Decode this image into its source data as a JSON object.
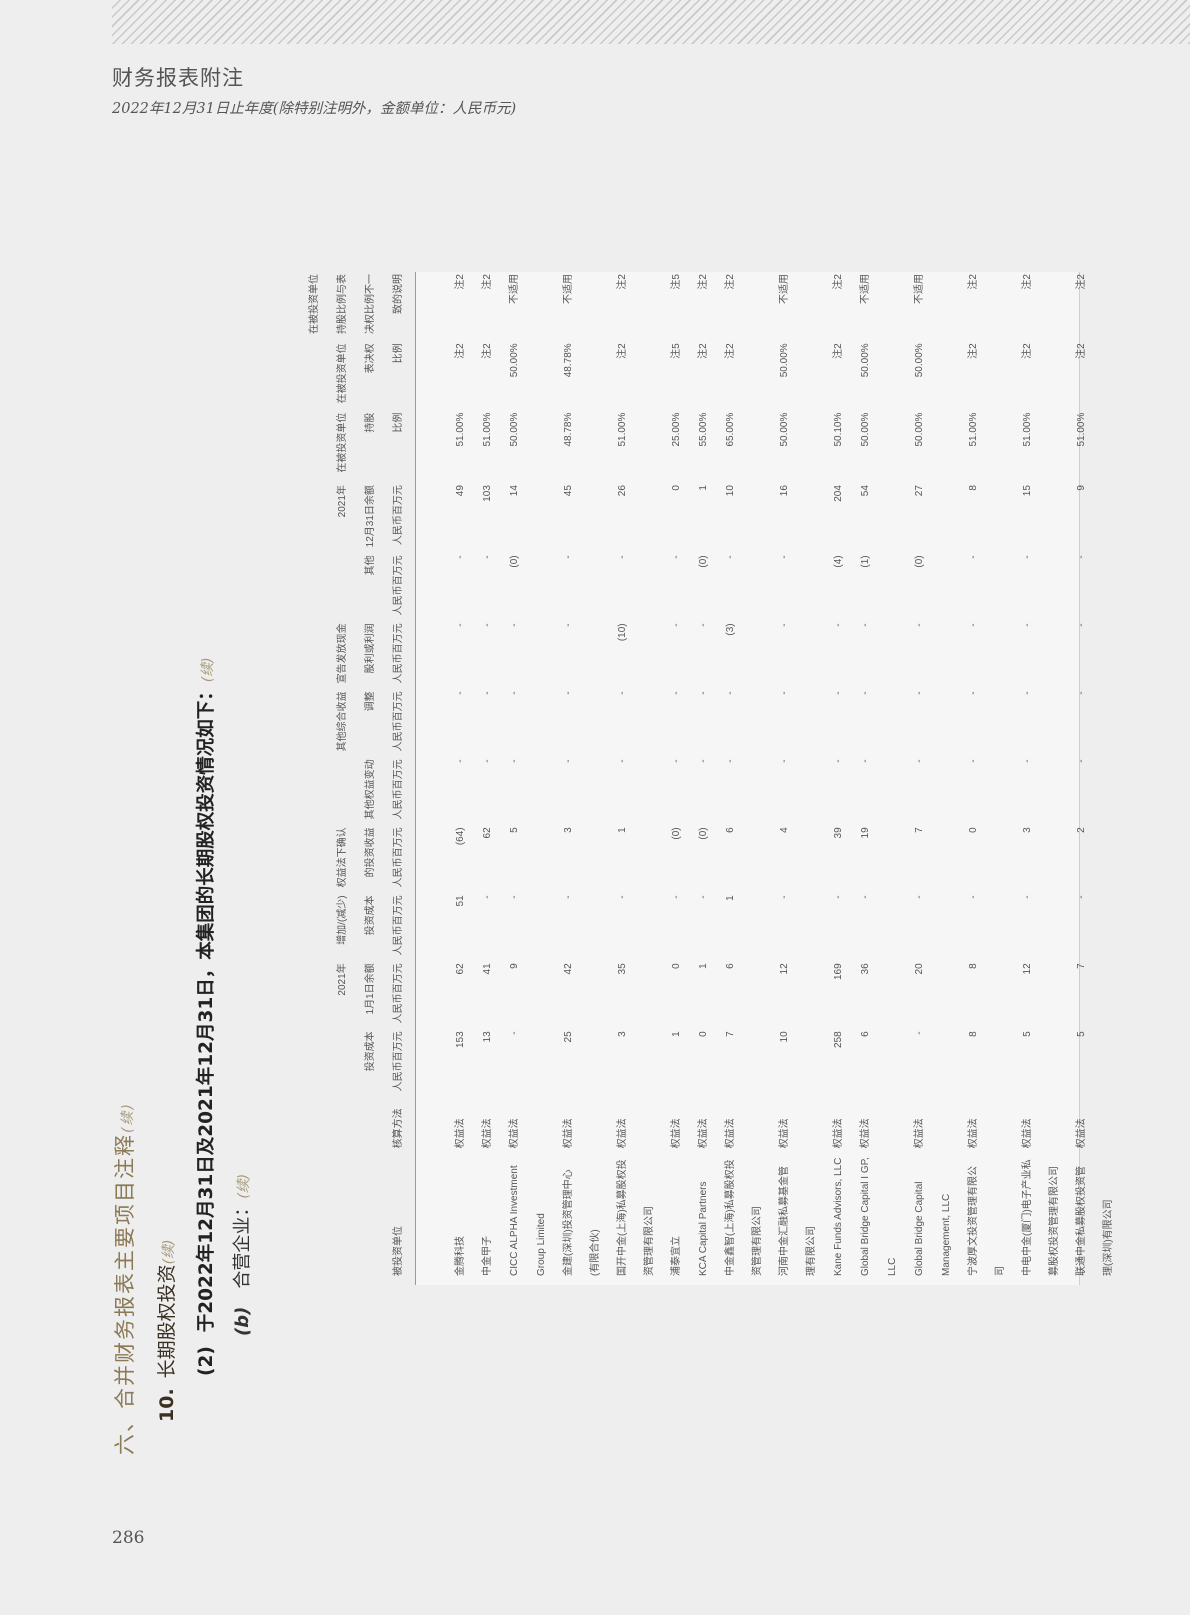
{
  "header": {
    "title": "财务报表附注",
    "subtitle": "2022年12月31日止年度(除特别注明外，金额单位：人民币元)"
  },
  "page_number": "286",
  "headings": {
    "section": "六、合并财务报表主要项目注释",
    "section_cont": "(续)",
    "item_num": "10.",
    "item": "长期股权投资",
    "item_cont": "(续)",
    "sub_num": "(2)",
    "sub": "于2022年12月31日及2021年12月31日，本集团的长期股权投资情况如下：",
    "sub_cont": "(续)",
    "part_num": "(b)",
    "part": "合营企业：",
    "part_cont": "(续)"
  },
  "table": {
    "columns": [
      [
        "被投资单位"
      ],
      [
        "核算方法"
      ],
      [
        "投资成本",
        "人民币百万元"
      ],
      [
        "2021年",
        "1月1日余额",
        "人民币百万元"
      ],
      [
        "增加/(减少)",
        "投资成本",
        "人民币百万元"
      ],
      [
        "权益法下确认",
        "的投资收益",
        "人民币百万元"
      ],
      [
        "其他权益变动",
        "人民币百万元"
      ],
      [
        "其他综合收益",
        "调整",
        "人民币百万元"
      ],
      [
        "宣告发放现金",
        "股利或利润",
        "人民币百万元"
      ],
      [
        "其他",
        "人民币百万元"
      ],
      [
        "2021年",
        "12月31日余额",
        "人民币百万元"
      ],
      [
        "在被投资单位",
        "持股",
        "比例"
      ],
      [
        "在被投资单位",
        "表决权",
        "比例"
      ],
      [
        "在被投资单位",
        "持股比例与表",
        "决权比例不一",
        "致的说明"
      ]
    ],
    "rows": [
      [
        "金腾科技",
        "权益法",
        "153",
        "62",
        "51",
        "(64)",
        "-",
        "-",
        "-",
        "-",
        "49",
        "51.00%",
        "注2",
        "注2"
      ],
      [
        "中金甲子",
        "权益法",
        "13",
        "41",
        "-",
        "62",
        "-",
        "-",
        "-",
        "-",
        "103",
        "51.00%",
        "注2",
        "注2"
      ],
      [
        "CICC ALPHA Investment Group Limited",
        "权益法",
        "-",
        "9",
        "-",
        "5",
        "-",
        "-",
        "-",
        "(0)",
        "14",
        "50.00%",
        "50.00%",
        "不适用"
      ],
      [
        "金建(深圳)投资管理中心(有限合伙)",
        "权益法",
        "25",
        "42",
        "-",
        "3",
        "-",
        "-",
        "-",
        "-",
        "45",
        "48.78%",
        "48.78%",
        "不适用"
      ],
      [
        "国开中金(上海)私募股权投资管理有限公司",
        "权益法",
        "3",
        "35",
        "-",
        "1",
        "-",
        "-",
        "(10)",
        "-",
        "26",
        "51.00%",
        "注2",
        "注2"
      ],
      [
        "浦泰宜立",
        "权益法",
        "1",
        "0",
        "-",
        "(0)",
        "-",
        "-",
        "-",
        "-",
        "0",
        "25.00%",
        "注5",
        "注5"
      ],
      [
        "KCA Capital Partners",
        "权益法",
        "0",
        "1",
        "-",
        "(0)",
        "-",
        "-",
        "-",
        "(0)",
        "1",
        "55.00%",
        "注2",
        "注2"
      ],
      [
        "中金鑫智(上海)私募股权投资管理有限公司",
        "权益法",
        "7",
        "6",
        "1",
        "6",
        "-",
        "-",
        "(3)",
        "-",
        "10",
        "65.00%",
        "注2",
        "注2"
      ],
      [
        "河南中金汇融私募基金管理有限公司",
        "权益法",
        "10",
        "12",
        "-",
        "4",
        "-",
        "-",
        "-",
        "-",
        "16",
        "50.00%",
        "50.00%",
        "不适用"
      ],
      [
        "Kane Funds Advisors, LLC",
        "权益法",
        "258",
        "169",
        "-",
        "39",
        "-",
        "-",
        "-",
        "(4)",
        "204",
        "50.10%",
        "注2",
        "注2"
      ],
      [
        "Global Bridge Capital I GP, LLC",
        "权益法",
        "6",
        "36",
        "-",
        "19",
        "-",
        "-",
        "-",
        "(1)",
        "54",
        "50.00%",
        "50.00%",
        "不适用"
      ],
      [
        "Global Bridge Capital Management, LLC",
        "权益法",
        "-",
        "20",
        "-",
        "7",
        "-",
        "-",
        "-",
        "(0)",
        "27",
        "50.00%",
        "50.00%",
        "不适用"
      ],
      [
        "宁波厚文投资管理有限公司",
        "权益法",
        "8",
        "8",
        "-",
        "0",
        "-",
        "-",
        "-",
        "-",
        "8",
        "51.00%",
        "注2",
        "注2"
      ],
      [
        "中电中金(厦门)电子产业私募股权投资管理有限公司",
        "权益法",
        "5",
        "12",
        "-",
        "3",
        "-",
        "-",
        "-",
        "-",
        "15",
        "51.00%",
        "注2",
        "注2"
      ],
      [
        "联通中金私募股权投资管理(深圳)有限公司",
        "权益法",
        "5",
        "7",
        "-",
        "2",
        "-",
        "-",
        "-",
        "-",
        "9",
        "51.00%",
        "注2",
        "注2"
      ]
    ]
  }
}
